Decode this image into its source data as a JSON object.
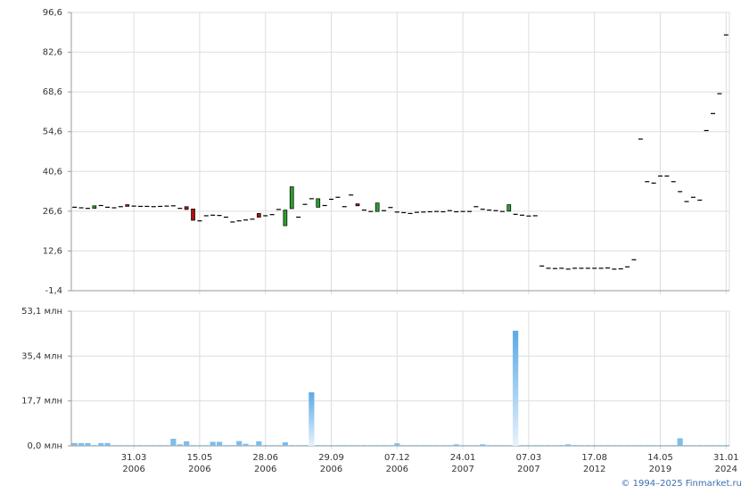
{
  "chart_data": [
    {
      "type": "candlestick",
      "open": [
        28,
        27.8,
        27.6,
        27.6,
        28.6,
        28,
        27.8,
        28.2,
        28.9,
        28.4,
        28.3,
        28.3,
        28.2,
        28.3,
        28.4,
        28.5,
        27.6,
        28.2,
        27.4,
        23.2,
        25,
        25.2,
        25.1,
        24.5,
        22.8,
        23.2,
        23.5,
        23.8,
        25.8,
        25,
        25.4,
        27.2,
        21.5,
        27.5,
        24.5,
        29,
        31,
        28,
        28.6,
        30.8,
        31.5,
        28.2,
        32.3,
        29.2,
        27,
        26.5,
        26.5,
        26.8,
        27.9,
        26.3,
        26.1,
        25.8,
        26.2,
        26.3,
        26.4,
        26.5,
        26.4,
        26.8,
        26.4,
        26.5,
        26.5,
        28.2,
        27.3,
        27,
        26.8,
        26.5,
        26.6,
        25.5,
        25.2,
        24.9,
        25,
        7.3,
        6.5,
        6.4,
        6.5,
        6.2,
        6.5,
        6.5,
        6.5,
        6.5,
        6.5,
        6.6,
        6.2,
        6.3,
        7,
        9.5,
        52,
        37,
        36.5,
        39,
        39,
        37,
        33.5,
        30,
        31.5,
        30.5,
        55,
        61,
        68,
        88.7
      ],
      "close": [
        28,
        27.8,
        27.6,
        28.5,
        28.6,
        28,
        27.8,
        28.2,
        28.3,
        28.4,
        28.3,
        28.3,
        28.2,
        28.3,
        28.4,
        28.5,
        27.6,
        27.2,
        23.4,
        23.2,
        25,
        25.2,
        25.1,
        24.5,
        22.8,
        23.2,
        23.5,
        23.8,
        24.5,
        25,
        25.4,
        27.2,
        27,
        35.2,
        24.5,
        29,
        31,
        31,
        28.6,
        30.8,
        31.5,
        28.2,
        32.3,
        28.5,
        27,
        26.5,
        29.5,
        26.8,
        27.9,
        26.3,
        26.1,
        25.8,
        26.2,
        26.3,
        26.4,
        26.5,
        26.4,
        26.8,
        26.4,
        26.5,
        26.5,
        28.2,
        27.3,
        27,
        26.8,
        26.5,
        28.9,
        25.5,
        25.2,
        24.9,
        25,
        7.3,
        6.5,
        6.4,
        6.5,
        6.2,
        6.5,
        6.5,
        6.5,
        6.5,
        6.5,
        6.6,
        6.2,
        6.3,
        7,
        9.5,
        52,
        37,
        36.5,
        39,
        39,
        37,
        33.5,
        30,
        31.5,
        30.5,
        55,
        61,
        68,
        88.7
      ],
      "up_color": "#2e9e2e",
      "down_color": "#b01010",
      "doji_color": "#000000",
      "ylim": [
        -1.4,
        96.6
      ],
      "yticks": [
        {
          "value": -1.4,
          "label": "-1,4"
        },
        {
          "value": 12.6,
          "label": "12,6"
        },
        {
          "value": 26.6,
          "label": "26,6"
        },
        {
          "value": 40.6,
          "label": "40,6"
        },
        {
          "value": 54.6,
          "label": "54,6"
        },
        {
          "value": 68.6,
          "label": "68,6"
        },
        {
          "value": 82.6,
          "label": "82,6"
        },
        {
          "value": 96.6,
          "label": "96,6"
        }
      ],
      "grid": true
    },
    {
      "type": "bar",
      "categories": [
        null,
        null,
        null,
        null,
        null,
        null,
        null,
        null,
        null,
        [
          "31.03",
          "2006"
        ],
        null,
        null,
        null,
        null,
        null,
        null,
        null,
        null,
        null,
        [
          "15.05",
          "2006"
        ],
        null,
        null,
        null,
        null,
        null,
        null,
        null,
        null,
        null,
        [
          "28.06",
          "2006"
        ],
        null,
        null,
        null,
        null,
        null,
        null,
        null,
        null,
        null,
        [
          "29.09",
          "2006"
        ],
        null,
        null,
        null,
        null,
        null,
        null,
        null,
        null,
        null,
        [
          "07.12",
          "2006"
        ],
        null,
        null,
        null,
        null,
        null,
        null,
        null,
        null,
        null,
        [
          "24.01",
          "2007"
        ],
        null,
        null,
        null,
        null,
        null,
        null,
        null,
        null,
        null,
        [
          "07.03",
          "2007"
        ],
        null,
        null,
        null,
        null,
        null,
        null,
        null,
        null,
        null,
        [
          "17.08",
          "2012"
        ],
        null,
        null,
        null,
        null,
        null,
        null,
        null,
        null,
        null,
        [
          "14.05",
          "2019"
        ],
        null,
        null,
        null,
        null,
        null,
        null,
        null,
        null,
        null,
        [
          "31.01",
          "2024"
        ]
      ],
      "values": [
        1.1,
        1.1,
        1.1,
        0.3,
        1.1,
        1.1,
        0.3,
        0.3,
        0.3,
        0.3,
        0.3,
        0.3,
        0.3,
        0.3,
        0.3,
        2.8,
        0.6,
        1.8,
        0.3,
        0.3,
        0.3,
        1.6,
        1.6,
        0.3,
        0.3,
        1.9,
        0.8,
        0.3,
        1.8,
        0.3,
        0.3,
        0.3,
        1.4,
        0.3,
        0.3,
        0.3,
        21.1,
        0.3,
        0.3,
        0.3,
        0.3,
        0.3,
        0.3,
        0.3,
        0.3,
        0.3,
        0.3,
        0.3,
        0.3,
        1.0,
        0.3,
        0.3,
        0.3,
        0.3,
        0.3,
        0.3,
        0.3,
        0.3,
        0.6,
        0.3,
        0.3,
        0.3,
        0.6,
        0.3,
        0.3,
        0.3,
        0.3,
        45.4,
        0.3,
        0.3,
        0.3,
        0.3,
        0.3,
        0.3,
        0.3,
        0.6,
        0.3,
        0.3,
        0.3,
        0.3,
        0.3,
        0.3,
        0.3,
        0.3,
        0.3,
        0.3,
        0.3,
        0.3,
        0.3,
        0.3,
        0.3,
        0.3,
        3.0,
        0.3,
        0.3,
        0.3,
        0.3,
        0.3,
        0.3,
        0.3
      ],
      "color": "#7fbde8",
      "ylim": [
        0,
        53.1
      ],
      "yticks": [
        {
          "value": 0,
          "label": "0,0 млн"
        },
        {
          "value": 17.7,
          "label": "17,7 млн"
        },
        {
          "value": 35.4,
          "label": "35,4 млн"
        },
        {
          "value": 53.1,
          "label": "53,1 млн"
        }
      ],
      "grid": true
    }
  ],
  "footer": "© 1994–2025 Finmarket.ru"
}
